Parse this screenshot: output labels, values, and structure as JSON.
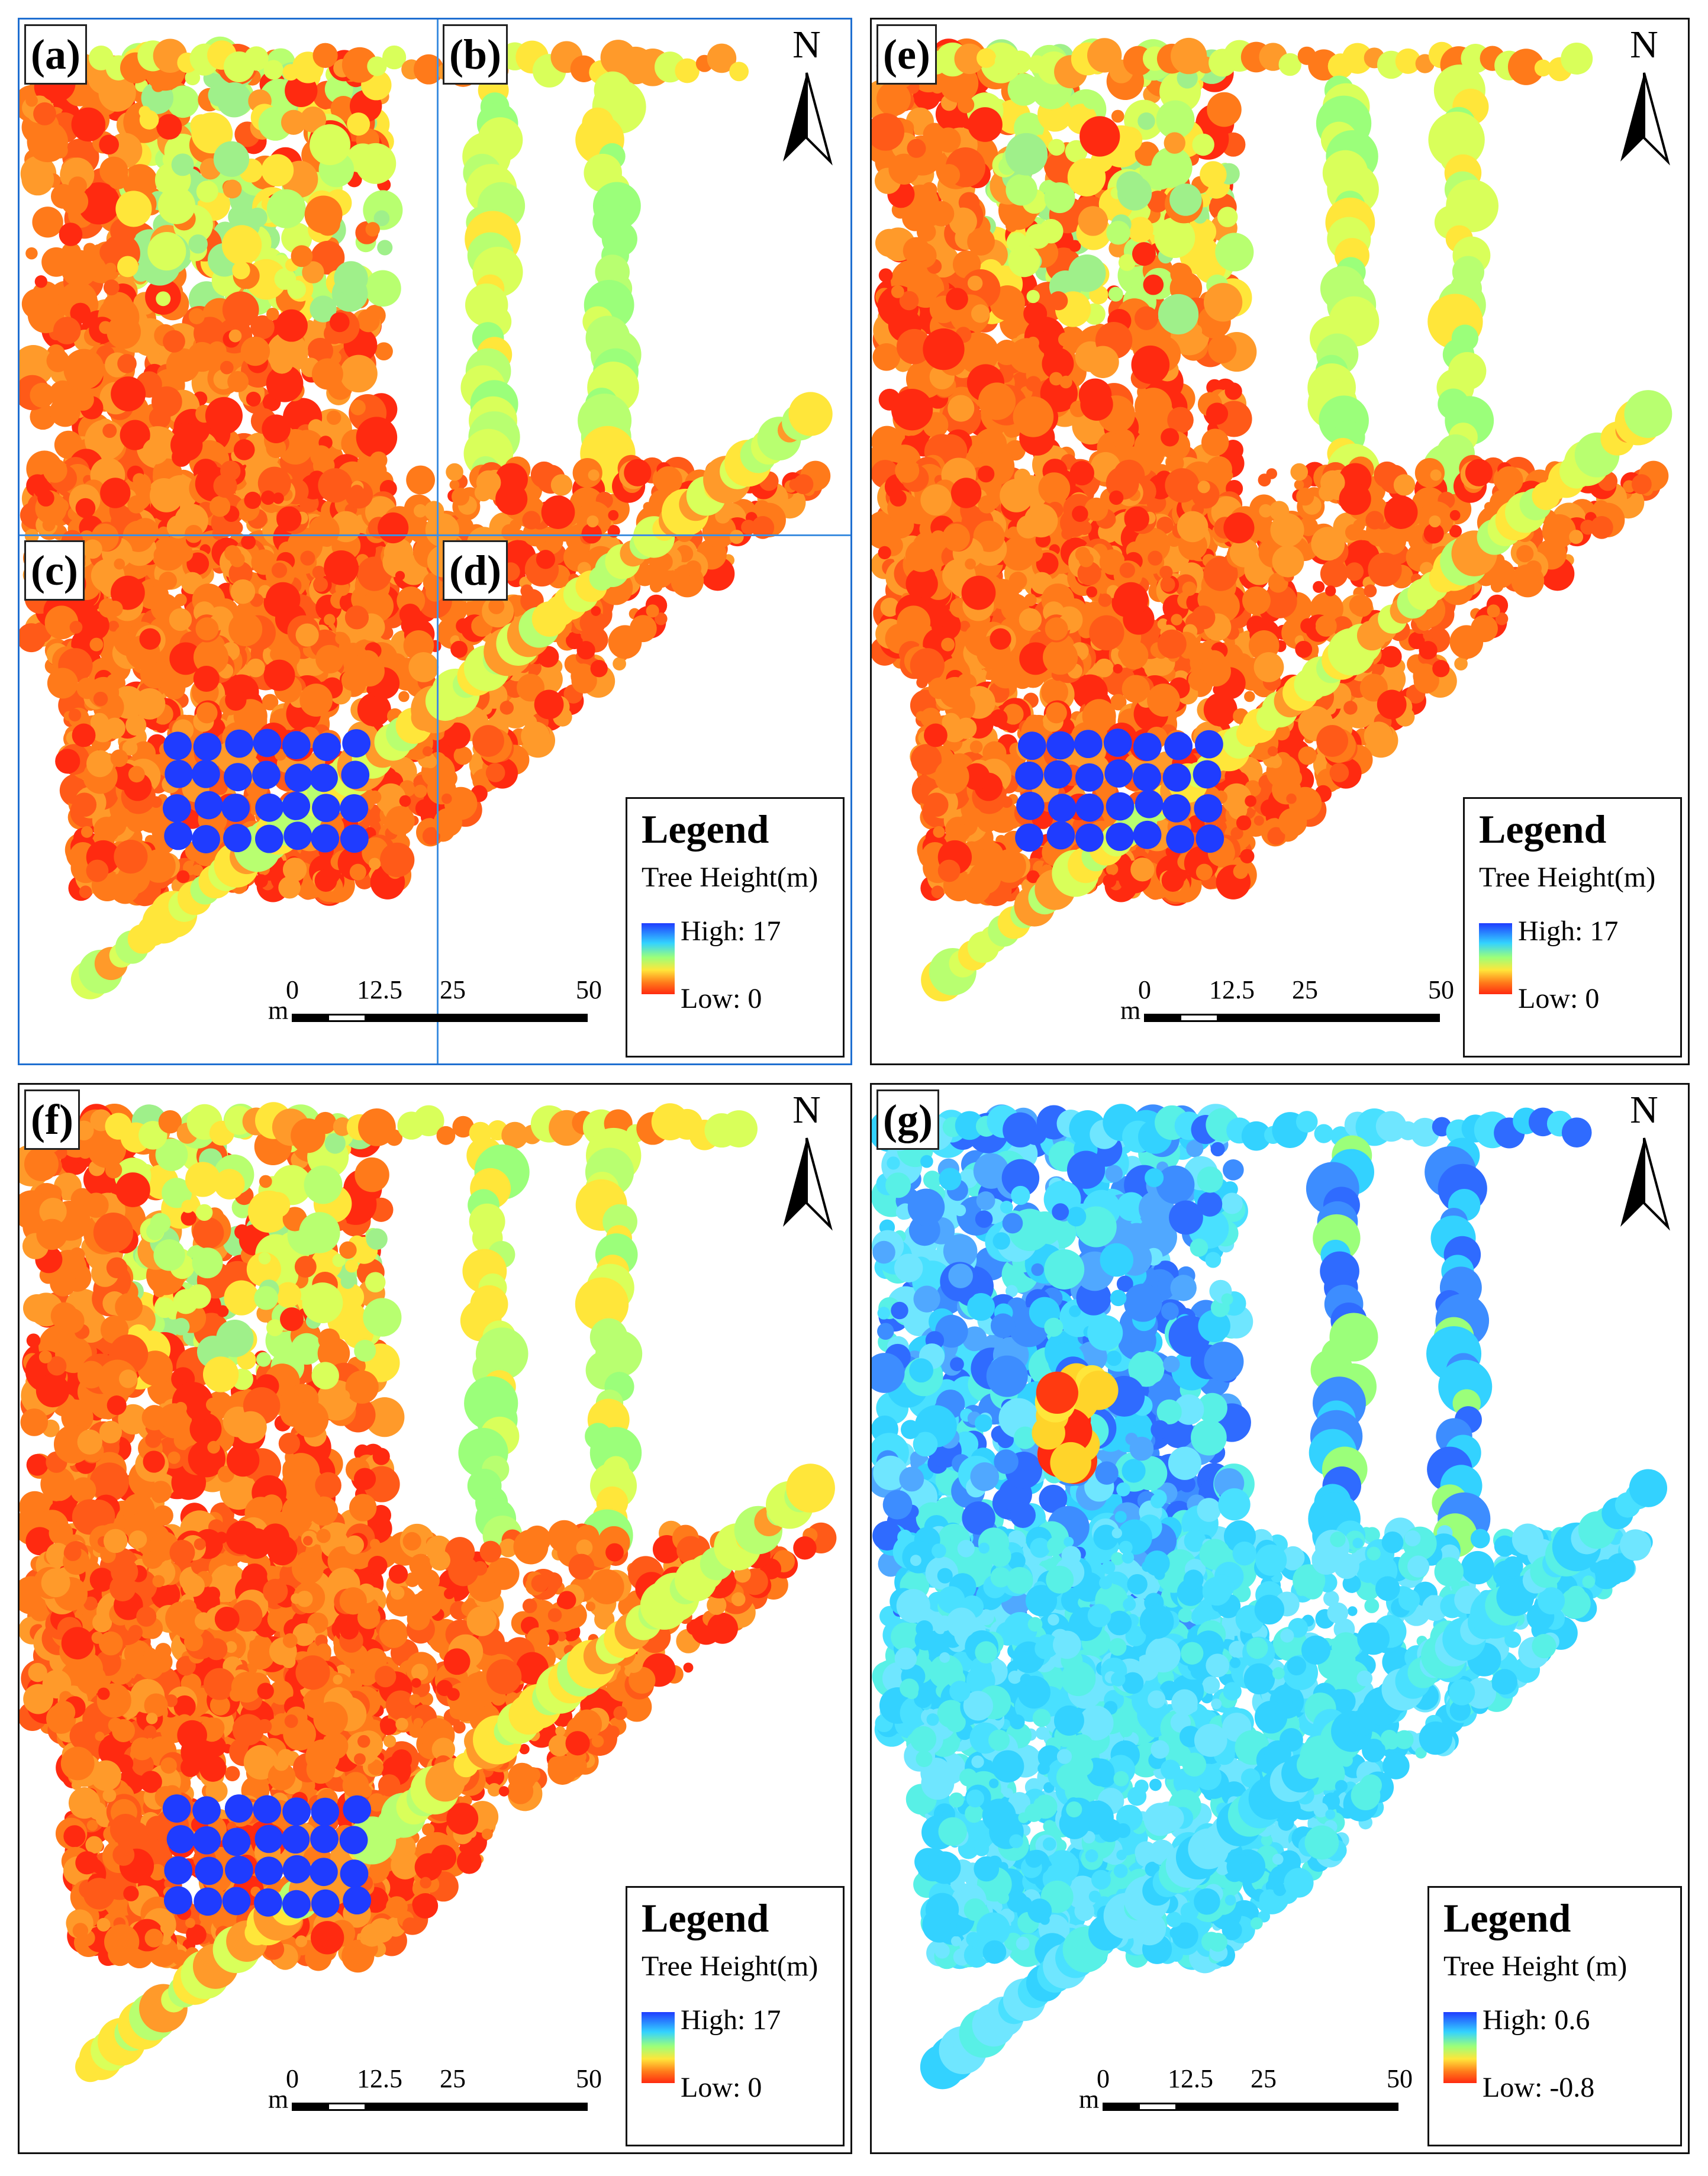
{
  "panels": [
    {
      "id": "a",
      "labels": [
        "(a)",
        "(b)",
        "(c)",
        "(d)"
      ],
      "north": "N",
      "legend": {
        "title": "Legend",
        "subtitle": "Tree Height(m)",
        "high": "High: 17",
        "low": "Low: 0"
      },
      "scale": {
        "unit": "m",
        "ticks": [
          "0",
          "12.5",
          "25",
          "50"
        ]
      }
    },
    {
      "id": "e",
      "labels": [
        "(e)"
      ],
      "north": "N",
      "legend": {
        "title": "Legend",
        "subtitle": "Tree Height(m)",
        "high": "High: 17",
        "low": "Low: 0"
      },
      "scale": {
        "unit": "m",
        "ticks": [
          "0",
          "12.5",
          "25",
          "50"
        ]
      }
    },
    {
      "id": "f",
      "labels": [
        "(f)"
      ],
      "north": "N",
      "legend": {
        "title": "Legend",
        "subtitle": "Tree Height(m)",
        "high": "High: 17",
        "low": "Low: 0"
      },
      "scale": {
        "unit": "m",
        "ticks": [
          "0",
          "12.5",
          "25",
          "50"
        ]
      }
    },
    {
      "id": "g",
      "labels": [
        "(g)"
      ],
      "north": "N",
      "legend": {
        "title": "Legend",
        "subtitle": "Tree Height (m)",
        "high": "High: 0.6",
        "low": "Low: -0.8"
      },
      "scale": {
        "unit": "m",
        "ticks": [
          "0",
          "12.5",
          "25",
          "50"
        ]
      }
    }
  ],
  "colors": {
    "high": "#1f3cff",
    "cyan": "#33d2ff",
    "green": "#9bff7a",
    "yellow": "#ffe63a",
    "orange": "#ff7a1a",
    "red": "#ff2a10",
    "panel_border_a": "#1f6fd1"
  }
}
